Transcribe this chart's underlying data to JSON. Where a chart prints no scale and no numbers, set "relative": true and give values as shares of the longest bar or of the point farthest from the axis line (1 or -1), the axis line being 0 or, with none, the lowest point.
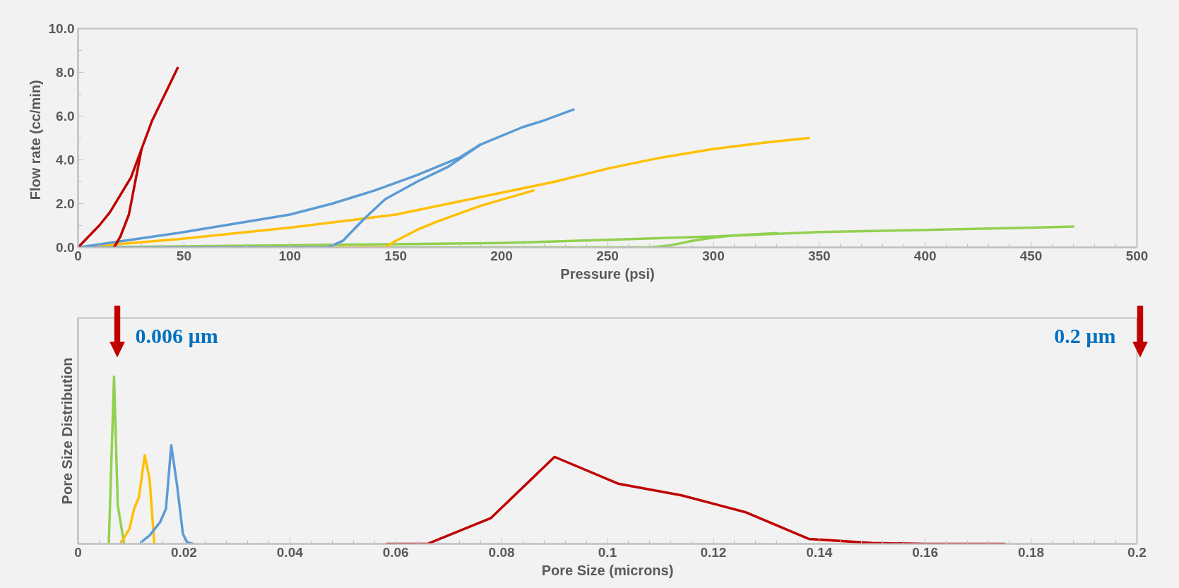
{
  "chart_data": [
    {
      "type": "line",
      "xlabel": "Pressure (psi)",
      "ylabel": "Flow rate  (cc/min)",
      "xlim": [
        0,
        500
      ],
      "ylim": [
        0,
        10
      ],
      "xticks": [
        0,
        50,
        100,
        150,
        200,
        250,
        300,
        350,
        400,
        450,
        500
      ],
      "yticks": [
        {
          "value": 0,
          "label": "0.0"
        },
        {
          "value": 2,
          "label": "2.0"
        },
        {
          "value": 4,
          "label": "4.0"
        },
        {
          "value": 6,
          "label": "6.0"
        },
        {
          "value": 8,
          "label": "8.0"
        },
        {
          "value": 10,
          "label": "10.0"
        }
      ],
      "series": [
        {
          "color": "#92d050",
          "x": [
            0,
            100,
            200,
            250,
            300,
            350,
            400,
            450,
            470
          ],
          "values": [
            0,
            0.1,
            0.2,
            0.35,
            0.5,
            0.7,
            0.8,
            0.9,
            0.95
          ]
        },
        {
          "color": "#92d050",
          "x": [
            0,
            270,
            280,
            290,
            300,
            310,
            330
          ],
          "values": [
            0,
            0,
            0.1,
            0.3,
            0.45,
            0.55,
            0.65
          ]
        },
        {
          "color": "#ffc000",
          "x": [
            0,
            50,
            100,
            150,
            175,
            200,
            225,
            250,
            275,
            300,
            325,
            345
          ],
          "values": [
            0,
            0.4,
            0.9,
            1.5,
            2.0,
            2.5,
            3.0,
            3.6,
            4.1,
            4.5,
            4.8,
            5.0
          ]
        },
        {
          "color": "#ffc000",
          "x": [
            0,
            145,
            150,
            160,
            170,
            190,
            215
          ],
          "values": [
            0,
            0,
            0.3,
            0.8,
            1.2,
            1.9,
            2.6
          ]
        },
        {
          "color": "#5b9bd5",
          "x": [
            0,
            50,
            100,
            120,
            140,
            160,
            180,
            190,
            210,
            220,
            234
          ],
          "values": [
            0,
            0.7,
            1.5,
            2.0,
            2.6,
            3.3,
            4.1,
            4.7,
            5.5,
            5.8,
            6.3
          ]
        },
        {
          "color": "#5b9bd5",
          "x": [
            0,
            118,
            125,
            135,
            145,
            160,
            175,
            190
          ],
          "values": [
            0,
            0,
            0.3,
            1.3,
            2.2,
            3.0,
            3.7,
            4.7
          ]
        },
        {
          "color": "#c00000",
          "x": [
            0,
            10,
            15,
            20,
            25,
            30,
            35,
            40,
            45,
            47
          ],
          "values": [
            0,
            1.0,
            1.6,
            2.4,
            3.2,
            4.5,
            5.8,
            6.8,
            7.8,
            8.2
          ]
        },
        {
          "color": "#c00000",
          "x": [
            17,
            20,
            24,
            27,
            30
          ],
          "values": [
            0,
            0.5,
            1.5,
            3.0,
            4.5
          ]
        }
      ]
    },
    {
      "type": "line",
      "relative": true,
      "tick_labels": "x",
      "xlabel": "Pore Size (microns)",
      "ylabel": "Pore Size Distribution",
      "xlim": [
        0,
        0.2
      ],
      "xticks": [
        0,
        0.02,
        0.04,
        0.06,
        0.08,
        0.1,
        0.12,
        0.14,
        0.16,
        0.18,
        0.2
      ],
      "annotations": [
        {
          "text": "0.006 µm",
          "x": 0.0068,
          "y": 1.0
        },
        "0.2 µm"
      ],
      "series": [
        {
          "color": "#92d050",
          "x": [
            0.0058,
            0.0068,
            0.0075,
            0.0087
          ],
          "values": [
            0,
            1.0,
            0.23,
            0
          ]
        },
        {
          "color": "#ffc000",
          "x": [
            0.008,
            0.0097,
            0.0106,
            0.0115,
            0.0126,
            0.0135,
            0.0144
          ],
          "values": [
            0,
            0.09,
            0.21,
            0.28,
            0.53,
            0.39,
            0
          ]
        },
        {
          "color": "#5b9bd5",
          "x": [
            0.0119,
            0.0135,
            0.0155,
            0.0166,
            0.0176,
            0.0187,
            0.0198,
            0.0206,
            0.0217
          ],
          "values": [
            0.01,
            0.05,
            0.13,
            0.21,
            0.59,
            0.35,
            0.06,
            0.01,
            0
          ]
        },
        {
          "color": "#c00000",
          "x": [
            0.0583,
            0.066,
            0.078,
            0.09,
            0.102,
            0.114,
            0.126,
            0.138,
            0.15,
            0.16,
            0.175
          ],
          "values": [
            0,
            0,
            0.155,
            0.52,
            0.36,
            0.29,
            0.19,
            0.03,
            0.005,
            0,
            0
          ]
        }
      ]
    }
  ]
}
